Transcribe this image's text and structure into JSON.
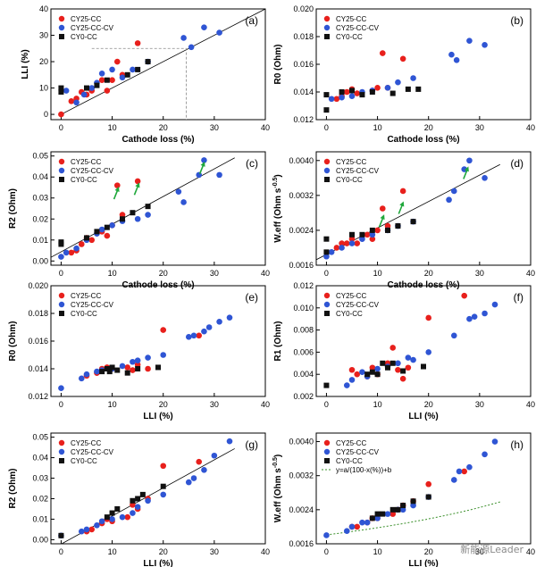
{
  "colors": {
    "CY25-CC": "#e8201c",
    "CY25-CC-CV": "#2f55d4",
    "CY0-CC": "#111111",
    "arrow": "#1fa83b",
    "fit": "#3a8f2a"
  },
  "watermark": "新能源Leader",
  "chart_data": [
    {
      "type": "scatter",
      "panel_label": "(a)",
      "xlabel": "Cathode loss (%)",
      "ylabel": "LLI (%)",
      "xlim": [
        -2,
        40
      ],
      "ylim": [
        -2,
        40
      ],
      "xticks": [
        0,
        10,
        20,
        30,
        40
      ],
      "yticks": [
        0,
        10,
        20,
        30,
        40
      ],
      "ytick_labels": [
        "0",
        "10",
        "20",
        "30",
        "40"
      ],
      "legend_position": "top-left",
      "reference_line": "y=x",
      "guide_point": [
        24.5,
        25
      ],
      "series": [
        {
          "name": "CY25-CC",
          "marker": "circle",
          "x": [
            0,
            2,
            3,
            4,
            5,
            6,
            8,
            9,
            10,
            11,
            12,
            15
          ],
          "y": [
            0,
            5,
            6,
            8.5,
            7.5,
            9,
            13,
            9,
            13,
            20,
            15,
            27
          ]
        },
        {
          "name": "CY25-CC-CV",
          "marker": "circle",
          "x": [
            1,
            3,
            4.5,
            6,
            7,
            8,
            10,
            12,
            14,
            17,
            24,
            25.5,
            28,
            31
          ],
          "y": [
            9,
            4.5,
            7.5,
            10,
            12,
            15.5,
            17,
            14,
            17,
            20,
            29,
            25.5,
            33,
            31
          ]
        },
        {
          "name": "CY0-CC",
          "marker": "square",
          "x": [
            0,
            0,
            5,
            7,
            9,
            13,
            15,
            17
          ],
          "y": [
            10,
            8.5,
            10,
            11,
            13,
            15,
            17,
            20
          ]
        }
      ]
    },
    {
      "type": "scatter",
      "panel_label": "(b)",
      "xlabel": "Cathode loss (%)",
      "ylabel": "R0 (Ohm)",
      "xlim": [
        -2,
        40
      ],
      "ylim": [
        0.012,
        0.02
      ],
      "xticks": [
        0,
        10,
        20,
        30,
        40
      ],
      "yticks": [
        0.012,
        0.014,
        0.016,
        0.018,
        0.02
      ],
      "ytick_labels": [
        "0.012",
        "0.014",
        "0.016",
        "0.018",
        "0.020"
      ],
      "legend_position": "top-left",
      "series": [
        {
          "name": "CY25-CC",
          "marker": "circle",
          "x": [
            2,
            3,
            4,
            5,
            6,
            9,
            10,
            11,
            12,
            15
          ],
          "y": [
            0.0135,
            0.0137,
            0.014,
            0.0142,
            0.0139,
            0.0141,
            0.0143,
            0.0168,
            0.0143,
            0.0164
          ],
          "series_hint": "red"
        },
        {
          "name": "CY25-CC-CV",
          "marker": "circle",
          "x": [
            1,
            3,
            5,
            7,
            9,
            12,
            14,
            17,
            24.5,
            25.5,
            28,
            31
          ],
          "y": [
            0.0135,
            0.0136,
            0.0137,
            0.014,
            0.0141,
            0.0143,
            0.0147,
            0.015,
            0.0167,
            0.0163,
            0.0177,
            0.0174
          ]
        },
        {
          "name": "CY0-CC",
          "marker": "square",
          "x": [
            0,
            0,
            3,
            5,
            7,
            9,
            13,
            16,
            18
          ],
          "y": [
            0.0138,
            0.0127,
            0.014,
            0.0141,
            0.0138,
            0.014,
            0.0139,
            0.0142,
            0.0142
          ]
        }
      ]
    },
    {
      "type": "scatter",
      "panel_label": "(c)",
      "xlabel": "Cathode loss (%)",
      "ylabel": "R2 (Ohm)",
      "xlim": [
        -2,
        40
      ],
      "ylim": [
        -0.002,
        0.052
      ],
      "xticks": [
        0,
        10,
        20,
        30,
        40
      ],
      "yticks": [
        0,
        0.01,
        0.02,
        0.03,
        0.04,
        0.05
      ],
      "ytick_labels": [
        "0.00",
        "0.01",
        "0.02",
        "0.03",
        "0.04",
        "0.05"
      ],
      "legend_position": "top-left",
      "reference_line": "linear",
      "arrows": [
        [
          10.7,
          0.032
        ],
        [
          14.7,
          0.034
        ],
        [
          27.5,
          0.044
        ]
      ],
      "series": [
        {
          "name": "CY25-CC",
          "marker": "circle",
          "x": [
            2,
            3,
            4,
            5,
            6,
            8,
            9,
            10,
            11,
            12,
            15
          ],
          "y": [
            0.004,
            0.005,
            0.008,
            0.011,
            0.01,
            0.014,
            0.012,
            0.017,
            0.036,
            0.022,
            0.038
          ]
        },
        {
          "name": "CY25-CC-CV",
          "marker": "circle",
          "x": [
            0,
            1,
            3,
            5,
            7,
            8,
            10,
            12,
            15,
            17,
            23,
            24,
            27,
            28,
            31
          ],
          "y": [
            0.002,
            0.004,
            0.006,
            0.01,
            0.013,
            0.015,
            0.017,
            0.019,
            0.02,
            0.022,
            0.033,
            0.028,
            0.041,
            0.048,
            0.041
          ]
        },
        {
          "name": "CY0-CC",
          "marker": "square",
          "x": [
            0,
            0,
            5,
            7,
            9,
            12,
            14,
            17
          ],
          "y": [
            0.009,
            0.008,
            0.011,
            0.014,
            0.016,
            0.02,
            0.023,
            0.026
          ]
        }
      ]
    },
    {
      "type": "scatter",
      "panel_label": "(d)",
      "xlabel": "Cathode loss (%)",
      "ylabel": "W.eff (Ohm s",
      "ylabel_sup": "-0.5",
      "ylabel_tail": ")",
      "xlim": [
        -2,
        40
      ],
      "ylim": [
        0.0016,
        0.0042
      ],
      "xticks": [
        0,
        10,
        20,
        30,
        40
      ],
      "yticks": [
        0.0016,
        0.0024,
        0.0032,
        0.004
      ],
      "ytick_labels": [
        "0.0016",
        "0.0024",
        "0.0032",
        "0.0040"
      ],
      "legend_position": "top-left",
      "reference_line": "linear",
      "arrows": [
        [
          10.7,
          0.0026
        ],
        [
          14.5,
          0.0029
        ],
        [
          27.2,
          0.0037
        ]
      ],
      "series": [
        {
          "name": "CY25-CC",
          "marker": "circle",
          "x": [
            2,
            3,
            4,
            5,
            6,
            8,
            9,
            10,
            11,
            12,
            15
          ],
          "y": [
            0.002,
            0.0021,
            0.0021,
            0.0022,
            0.0021,
            0.0023,
            0.0022,
            0.0024,
            0.0029,
            0.0025,
            0.0033
          ]
        },
        {
          "name": "CY25-CC-CV",
          "marker": "circle",
          "x": [
            0,
            1,
            3,
            5,
            7,
            9,
            12,
            14,
            17,
            24,
            25,
            27,
            28,
            31
          ],
          "y": [
            0.0018,
            0.0019,
            0.002,
            0.0021,
            0.0022,
            0.0023,
            0.0024,
            0.0025,
            0.0026,
            0.0031,
            0.0033,
            0.0038,
            0.004,
            0.0036
          ]
        },
        {
          "name": "CY0-CC",
          "marker": "square",
          "x": [
            0,
            0,
            5,
            7,
            9,
            12,
            14,
            17
          ],
          "y": [
            0.0022,
            0.0019,
            0.0023,
            0.0023,
            0.0024,
            0.0024,
            0.0025,
            0.0026
          ]
        }
      ]
    },
    {
      "type": "scatter",
      "panel_label": "(e)",
      "xlabel": "LLI  (%)",
      "ylabel": "R0 (Ohm)",
      "xlim": [
        -2,
        40
      ],
      "ylim": [
        0.012,
        0.02
      ],
      "xticks": [
        0,
        10,
        20,
        30,
        40
      ],
      "yticks": [
        0.012,
        0.014,
        0.016,
        0.018,
        0.02
      ],
      "ytick_labels": [
        "0.012",
        "0.014",
        "0.016",
        "0.018",
        "0.020"
      ],
      "legend_position": "top-left",
      "series": [
        {
          "name": "CY25-CC",
          "marker": "circle",
          "x": [
            5,
            7,
            8,
            9,
            10,
            13,
            14,
            15,
            17,
            20,
            27
          ],
          "y": [
            0.0135,
            0.0137,
            0.014,
            0.0141,
            0.014,
            0.0141,
            0.0139,
            0.0143,
            0.014,
            0.0168,
            0.0164
          ]
        },
        {
          "name": "CY25-CC-CV",
          "marker": "circle",
          "x": [
            0,
            4,
            5,
            7,
            8,
            10,
            12,
            14,
            15,
            17,
            20,
            25,
            26,
            28,
            29,
            31,
            33
          ],
          "y": [
            0.0126,
            0.0133,
            0.0136,
            0.0138,
            0.0139,
            0.014,
            0.0142,
            0.0145,
            0.0146,
            0.0148,
            0.015,
            0.0163,
            0.0164,
            0.0167,
            0.017,
            0.0174,
            0.0177
          ]
        },
        {
          "name": "CY0-CC",
          "marker": "square",
          "x": [
            8,
            9,
            9.5,
            10,
            11,
            13,
            15,
            19
          ],
          "y": [
            0.0138,
            0.014,
            0.0138,
            0.0141,
            0.0139,
            0.0137,
            0.014,
            0.0141
          ]
        }
      ]
    },
    {
      "type": "scatter",
      "panel_label": "(f)",
      "xlabel": "LLI  (%)",
      "ylabel": "R1 (Ohm)",
      "xlim": [
        -2,
        40
      ],
      "ylim": [
        0.002,
        0.012
      ],
      "xticks": [
        0,
        10,
        20,
        30,
        40
      ],
      "yticks": [
        0.002,
        0.004,
        0.006,
        0.008,
        0.01,
        0.012
      ],
      "ytick_labels": [
        "0.002",
        "0.004",
        "0.006",
        "0.008",
        "0.010",
        "0.012"
      ],
      "legend_position": "top-left",
      "series": [
        {
          "name": "CY25-CC",
          "marker": "circle",
          "x": [
            5,
            6,
            8,
            9,
            10,
            12,
            13,
            14,
            15,
            16,
            20,
            27
          ],
          "y": [
            0.0044,
            0.004,
            0.0038,
            0.0046,
            0.004,
            0.005,
            0.0064,
            0.0044,
            0.0036,
            0.0046,
            0.0091,
            0.0111
          ]
        },
        {
          "name": "CY25-CC-CV",
          "marker": "circle",
          "x": [
            4,
            5,
            7,
            8,
            10,
            12,
            14,
            16,
            17,
            20,
            25,
            28,
            29,
            31,
            33
          ],
          "y": [
            0.003,
            0.0035,
            0.0042,
            0.0038,
            0.0045,
            0.0047,
            0.005,
            0.0055,
            0.0053,
            0.006,
            0.0075,
            0.009,
            0.0092,
            0.0095,
            0.0103
          ]
        },
        {
          "name": "CY0-CC",
          "marker": "square",
          "x": [
            0,
            8,
            9,
            10,
            11,
            12,
            13,
            15,
            19
          ],
          "y": [
            0.003,
            0.004,
            0.0042,
            0.004,
            0.005,
            0.0046,
            0.005,
            0.0043,
            0.0047
          ]
        }
      ]
    },
    {
      "type": "scatter",
      "panel_label": "(g)",
      "xlabel": "LLI  (%)",
      "ylabel": "R2 (Ohm)",
      "xlim": [
        -2,
        40
      ],
      "ylim": [
        -0.002,
        0.052
      ],
      "xticks": [
        0,
        10,
        20,
        30,
        40
      ],
      "yticks": [
        0,
        0.01,
        0.02,
        0.03,
        0.04,
        0.05
      ],
      "ytick_labels": [
        "0.00",
        "0.01",
        "0.02",
        "0.03",
        "0.04",
        "0.05"
      ],
      "legend_position": "top-left",
      "reference_line": "linear",
      "series": [
        {
          "name": "CY25-CC",
          "marker": "circle",
          "x": [
            5,
            6,
            8,
            9,
            10,
            13,
            14,
            15,
            17,
            20,
            27
          ],
          "y": [
            0.004,
            0.005,
            0.008,
            0.01,
            0.009,
            0.011,
            0.017,
            0.015,
            0.02,
            0.036,
            0.038
          ]
        },
        {
          "name": "CY25-CC-CV",
          "marker": "circle",
          "x": [
            0,
            4,
            5,
            7,
            8,
            10,
            12,
            14,
            15,
            17,
            20,
            25,
            26,
            28,
            30,
            33
          ],
          "y": [
            0.002,
            0.004,
            0.005,
            0.007,
            0.009,
            0.01,
            0.011,
            0.013,
            0.016,
            0.019,
            0.022,
            0.028,
            0.03,
            0.034,
            0.041,
            0.048
          ]
        },
        {
          "name": "CY0-CC",
          "marker": "square",
          "x": [
            0,
            9,
            10,
            11,
            14,
            15,
            16,
            20
          ],
          "y": [
            0.002,
            0.011,
            0.013,
            0.015,
            0.019,
            0.02,
            0.022,
            0.026
          ]
        }
      ]
    },
    {
      "type": "scatter",
      "panel_label": "(h)",
      "xlabel": "LLI  (%)",
      "ylabel": "W.eff (Ohm s",
      "ylabel_sup": "-0.5",
      "ylabel_tail": ")",
      "xlim": [
        -2,
        40
      ],
      "ylim": [
        0.0016,
        0.0042
      ],
      "xticks": [
        0,
        10,
        20,
        30,
        40
      ],
      "yticks": [
        0.0016,
        0.0024,
        0.0032,
        0.004
      ],
      "ytick_labels": [
        "0.0016",
        "0.0024",
        "0.0032",
        "0.0040"
      ],
      "legend_position": "top-left",
      "fit_label": "y=a/(100-x(%))+b",
      "fit": {
        "a": 0.15,
        "b": 0.00031,
        "xmin": 0,
        "xmax": 34
      },
      "series": [
        {
          "name": "CY25-CC",
          "marker": "circle",
          "x": [
            5,
            6,
            8,
            9,
            10,
            13,
            14,
            15,
            17,
            20,
            27
          ],
          "y": [
            0.002,
            0.002,
            0.0021,
            0.0022,
            0.0022,
            0.0023,
            0.0024,
            0.0025,
            0.0026,
            0.003,
            0.0033
          ]
        },
        {
          "name": "CY25-CC-CV",
          "marker": "circle",
          "x": [
            0,
            4,
            5,
            7,
            8,
            10,
            12,
            14,
            15,
            17,
            20,
            25,
            26,
            28,
            31,
            33
          ],
          "y": [
            0.0018,
            0.0019,
            0.002,
            0.0021,
            0.0021,
            0.0022,
            0.0023,
            0.0024,
            0.0024,
            0.0025,
            0.0027,
            0.0031,
            0.0033,
            0.0034,
            0.0037,
            0.004
          ]
        },
        {
          "name": "CY0-CC",
          "marker": "square",
          "x": [
            9,
            10,
            11,
            13,
            14,
            15,
            17,
            20
          ],
          "y": [
            0.0022,
            0.0023,
            0.0023,
            0.0024,
            0.0024,
            0.0025,
            0.0026,
            0.0027
          ]
        }
      ]
    }
  ]
}
